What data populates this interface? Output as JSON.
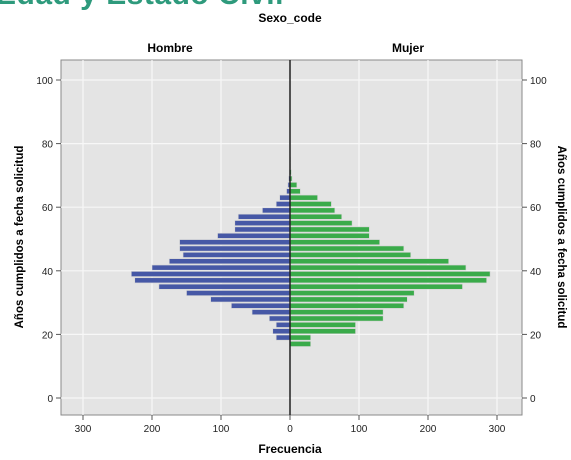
{
  "page": {
    "top_title_fragment": "Edad y Estado Civil"
  },
  "chart_data": {
    "type": "bar",
    "orientation": "horizontal",
    "layout": "population-pyramid",
    "title": "Sexo_code",
    "panels": [
      "Hombre",
      "Mujer"
    ],
    "xlabel": "Frecuencia",
    "ylabel": "Años cumplidos a fecha solicitud",
    "xlim": [
      0,
      320
    ],
    "xticks": [
      300,
      200,
      100,
      0,
      100,
      200,
      300
    ],
    "ylim": [
      -4,
      104
    ],
    "yticks": [
      0,
      20,
      40,
      60,
      80,
      100
    ],
    "grid": true,
    "bar_height_units": 2,
    "colors": {
      "Hombre": "#4658a6",
      "Mujer": "#3aab4a",
      "plot_background": "#e4e4e4",
      "grid": "#f7f7f7"
    },
    "series": [
      {
        "name": "Hombre",
        "ages": [
          16,
          18,
          20,
          22,
          24,
          26,
          28,
          30,
          32,
          34,
          36,
          38,
          40,
          42,
          44,
          46,
          48,
          50,
          52,
          54,
          56,
          58,
          60,
          62,
          64,
          66,
          68,
          70,
          72,
          74,
          76,
          78,
          80
        ],
        "values": [
          0,
          20,
          25,
          20,
          30,
          55,
          85,
          115,
          150,
          190,
          225,
          230,
          200,
          175,
          155,
          160,
          160,
          105,
          80,
          80,
          75,
          40,
          20,
          15,
          5,
          3,
          2,
          1,
          0,
          0,
          0,
          0,
          0
        ]
      },
      {
        "name": "Mujer",
        "ages": [
          16,
          18,
          20,
          22,
          24,
          26,
          28,
          30,
          32,
          34,
          36,
          38,
          40,
          42,
          44,
          46,
          48,
          50,
          52,
          54,
          56,
          58,
          60,
          62,
          64,
          66,
          68,
          70,
          72,
          74,
          76,
          78,
          80
        ],
        "values": [
          30,
          30,
          95,
          95,
          135,
          135,
          165,
          170,
          180,
          250,
          285,
          290,
          255,
          230,
          175,
          165,
          130,
          115,
          115,
          90,
          75,
          65,
          60,
          40,
          15,
          10,
          3,
          2,
          1,
          1,
          0,
          0,
          0
        ]
      }
    ]
  }
}
